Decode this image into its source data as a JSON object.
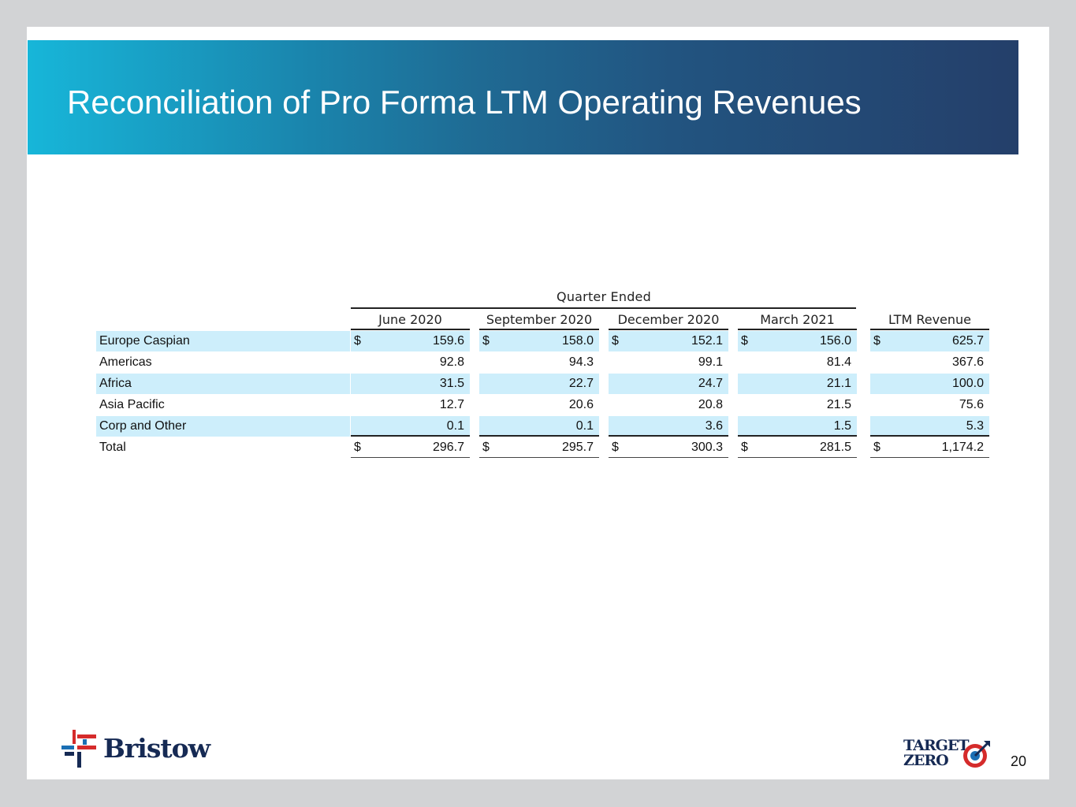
{
  "title": "Reconciliation of Pro Forma LTM Operating Revenues",
  "table": {
    "group_header": "Quarter Ended",
    "columns": [
      "June 2020",
      "September 2020",
      "December 2020",
      "March 2021",
      "LTM Revenue"
    ],
    "currency_symbol": "$",
    "rows": [
      {
        "label": "Europe Caspian",
        "values": [
          "159.6",
          "158.0",
          "152.1",
          "156.0",
          "625.7"
        ]
      },
      {
        "label": "Americas",
        "values": [
          "92.8",
          "94.3",
          "99.1",
          "81.4",
          "367.6"
        ]
      },
      {
        "label": "Africa",
        "values": [
          "31.5",
          "22.7",
          "24.7",
          "21.1",
          "100.0"
        ]
      },
      {
        "label": "Asia Pacific",
        "values": [
          "12.7",
          "20.6",
          "20.8",
          "21.5",
          "75.6"
        ]
      },
      {
        "label": "Corp and Other",
        "values": [
          "0.1",
          "0.1",
          "3.6",
          "1.5",
          "5.3"
        ]
      },
      {
        "label": "Total",
        "values": [
          "296.7",
          "295.7",
          "300.3",
          "281.5",
          "1,174.2"
        ]
      }
    ]
  },
  "logos": {
    "left": "Bristow",
    "right_line1": "TARGET",
    "right_line2": "ZERO"
  },
  "page_number": "20",
  "colors": {
    "banner_start": "#17b6d9",
    "banner_end": "#243f6a",
    "row_band": "#cdeefb",
    "logo_red": "#d52b2b",
    "logo_navy": "#162a54"
  }
}
